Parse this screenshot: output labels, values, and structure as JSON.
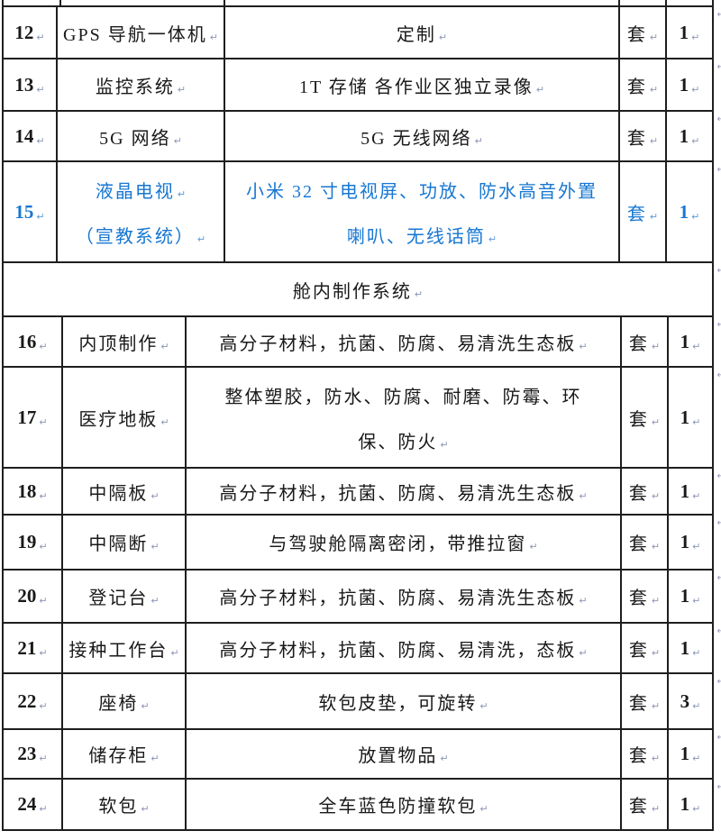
{
  "icons": {
    "pilcrow": "↵"
  },
  "colors": {
    "text": "#191919",
    "accent_blue": "#1777d2",
    "mark_gray": "#8d96b6",
    "border": "#1e1e1e"
  },
  "table": {
    "section_header": "舱内制作系统",
    "rows_top": [
      {
        "no": "12",
        "name": "GPS 导航一体机",
        "desc": "定制",
        "unit": "套",
        "qty": "1"
      },
      {
        "no": "13",
        "name": "监控系统",
        "desc": "1T 存储 各作业区独立录像",
        "unit": "套",
        "qty": "1"
      },
      {
        "no": "14",
        "name": "5G 网络",
        "desc": "5G 无线网络",
        "unit": "套",
        "qty": "1"
      },
      {
        "no": "15",
        "name_lines": [
          "液晶电视",
          "（宣教系统）"
        ],
        "desc_lines": [
          "小米 32 寸电视屏、功放、防水高音外置",
          "喇叭、无线话筒"
        ],
        "unit": "套",
        "qty": "1",
        "text_color": "#1777d2"
      }
    ],
    "rows_bottom": [
      {
        "no": "16",
        "name": "内顶制作",
        "desc": "高分子材料，抗菌、防腐、易清洗生态板",
        "unit": "套",
        "qty": "1"
      },
      {
        "no": "17",
        "name": "医疗地板",
        "desc_lines": [
          "整体塑胶，防水、防腐、耐磨、防霉、环",
          "保、防火"
        ],
        "unit": "套",
        "qty": "1"
      },
      {
        "no": "18",
        "name": "中隔板",
        "desc": "高分子材料，抗菌、防腐、易清洗生态板",
        "unit": "套",
        "qty": "1"
      },
      {
        "no": "19",
        "name": "中隔断",
        "desc": "与驾驶舱隔离密闭，带推拉窗",
        "unit": "套",
        "qty": "1"
      },
      {
        "no": "20",
        "name": "登记台",
        "desc": "高分子材料，抗菌、防腐、易清洗生态板",
        "unit": "套",
        "qty": "1"
      },
      {
        "no": "21",
        "name": "接种工作台",
        "desc": "高分子材料，抗菌、防腐、易清洗，态板",
        "unit": "套",
        "qty": "1"
      },
      {
        "no": "22",
        "name": "座椅",
        "desc": "软包皮垫，可旋转",
        "unit": "套",
        "qty": "3"
      },
      {
        "no": "23",
        "name": "储存柜",
        "desc": "放置物品",
        "unit": "套",
        "qty": "1"
      },
      {
        "no": "24",
        "name": "软包",
        "desc": "全车蓝色防撞软包",
        "unit": "套",
        "qty": "1"
      }
    ]
  }
}
